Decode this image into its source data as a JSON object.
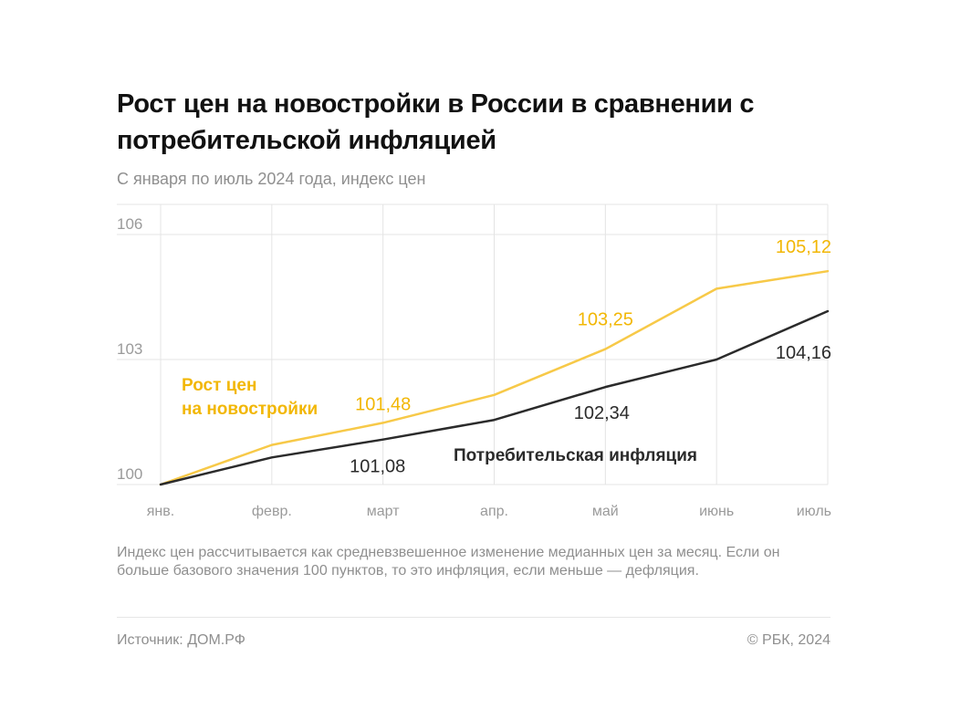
{
  "title": "Рост цен на новостройки в России в сравнении с потребительской инфляцией",
  "subtitle": "С января по июль 2024 года, индекс цен",
  "note": "Индекс цен рассчитывается как средневзвешенное изменение медианных цен за месяц. Если он больше базового значения 100 пунктов, то это инфляция, если меньше — дефляция.",
  "source": "Источник: ДОМ.РФ",
  "copyright": "© РБК, 2024",
  "colors": {
    "new_buildings": "#F7C948",
    "new_buildings_text": "#F2B705",
    "inflation": "#2B2B2B",
    "grid": "#E4E4E4",
    "tick_text": "#9A9A9A"
  },
  "chart_data": {
    "type": "line",
    "categories": [
      "янв.",
      "февр.",
      "март",
      "апр.",
      "май",
      "июнь",
      "июль"
    ],
    "ylim": [
      100,
      106
    ],
    "yticks": [
      {
        "value": 100,
        "label": "100"
      },
      {
        "value": 103,
        "label": "103"
      },
      {
        "value": 106,
        "label": "106"
      }
    ],
    "grid": true,
    "series": [
      {
        "key": "new_buildings",
        "name": "Рост цен на новостройки",
        "name_lines": [
          "Рост цен",
          "на новостройки"
        ],
        "values": [
          100,
          100.95,
          101.48,
          102.15,
          103.25,
          104.7,
          105.12
        ],
        "data_labels": [
          {
            "index": 2,
            "text": "101,48"
          },
          {
            "index": 4,
            "text": "103,25"
          },
          {
            "index": 6,
            "text": "105,12"
          }
        ]
      },
      {
        "key": "inflation",
        "name": "Потребительская инфляция",
        "name_lines": [
          "Потребительская инфляция"
        ],
        "values": [
          100,
          100.65,
          101.08,
          101.55,
          102.34,
          103.0,
          104.16
        ],
        "data_labels": [
          {
            "index": 2,
            "text": "101,08"
          },
          {
            "index": 4,
            "text": "102,34"
          },
          {
            "index": 6,
            "text": "104,16"
          }
        ]
      }
    ]
  }
}
